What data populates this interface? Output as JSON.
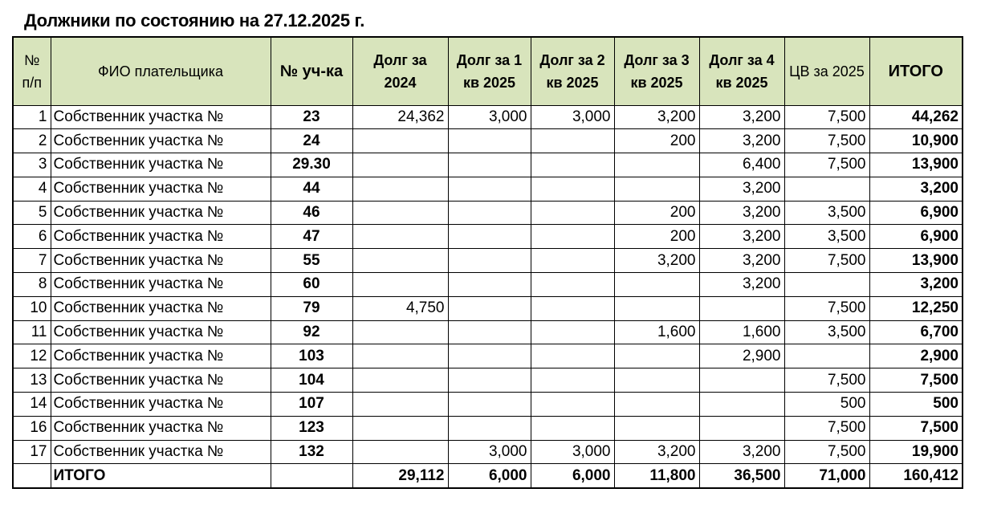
{
  "title": "Должники по состоянию на 27.12.2025 г.",
  "headers": [
    "№ п/п",
    "ФИО плательщика",
    "№ уч-ка",
    "Долг за 2024",
    "Долг за 1 кв 2025",
    "Долг за 2 кв 2025",
    "Долг за 3 кв 2025",
    "Долг за 4 кв 2025",
    "ЦВ за 2025",
    "ИТОГО"
  ],
  "header_color": "#d8e4bc",
  "rows": [
    [
      "1",
      "Собственник участка №",
      "23",
      "24,362",
      "3,000",
      "3,000",
      "3,200",
      "3,200",
      "7,500",
      "44,262"
    ],
    [
      "2",
      "Собственник участка №",
      "24",
      "",
      "",
      "",
      "200",
      "3,200",
      "7,500",
      "10,900"
    ],
    [
      "3",
      "Собственник участка №",
      "29.30",
      "",
      "",
      "",
      "",
      "6,400",
      "7,500",
      "13,900"
    ],
    [
      "4",
      "Собственник участка №",
      "44",
      "",
      "",
      "",
      "",
      "3,200",
      "",
      "3,200"
    ],
    [
      "5",
      "Собственник участка №",
      "46",
      "",
      "",
      "",
      "200",
      "3,200",
      "3,500",
      "6,900"
    ],
    [
      "6",
      "Собственник участка №",
      "47",
      "",
      "",
      "",
      "200",
      "3,200",
      "3,500",
      "6,900"
    ],
    [
      "7",
      "Собственник участка №",
      "55",
      "",
      "",
      "",
      "3,200",
      "3,200",
      "7,500",
      "13,900"
    ],
    [
      "8",
      "Собственник участка №",
      "60",
      "",
      "",
      "",
      "",
      "3,200",
      "",
      "3,200"
    ],
    [
      "10",
      "Собственник участка №",
      "79",
      "4,750",
      "",
      "",
      "",
      "",
      "7,500",
      "12,250"
    ],
    [
      "11",
      "Собственник участка №",
      "92",
      "",
      "",
      "",
      "1,600",
      "1,600",
      "3,500",
      "6,700"
    ],
    [
      "12",
      "Собственник участка №",
      "103",
      "",
      "",
      "",
      "",
      "2,900",
      "",
      "2,900"
    ],
    [
      "13",
      "Собственник участка №",
      "104",
      "",
      "",
      "",
      "",
      "",
      "7,500",
      "7,500"
    ],
    [
      "14",
      "Собственник участка №",
      "107",
      "",
      "",
      "",
      "",
      "",
      "500",
      "500"
    ],
    [
      "16",
      "Собственник участка №",
      "123",
      "",
      "",
      "",
      "",
      "",
      "7,500",
      "7,500"
    ],
    [
      "17",
      "Собственник участка №",
      "132",
      "",
      "3,000",
      "3,000",
      "3,200",
      "3,200",
      "7,500",
      "19,900"
    ]
  ],
  "total": [
    "",
    "ИТОГО",
    "",
    "29,112",
    "6,000",
    "6,000",
    "11,800",
    "36,500",
    "71,000",
    "160,412"
  ]
}
